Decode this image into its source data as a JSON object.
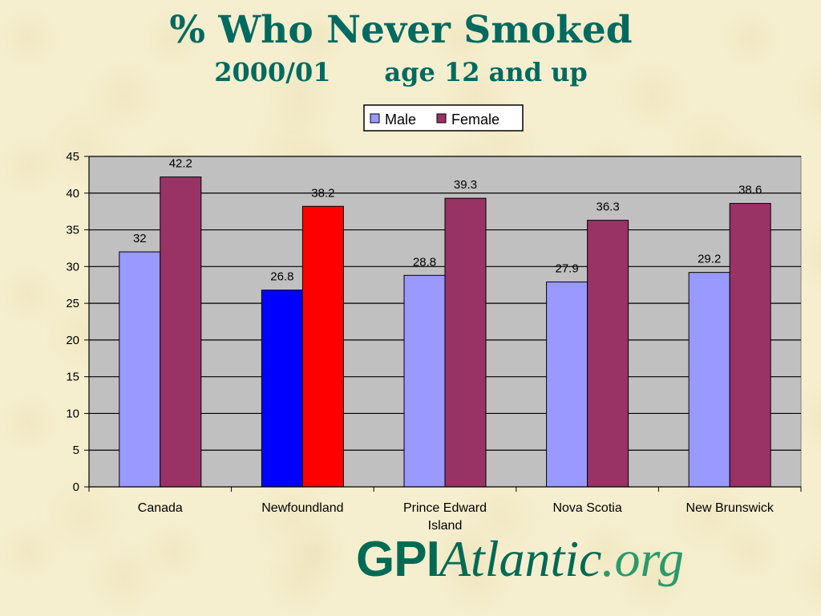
{
  "slide": {
    "title": "% Who Never Smoked",
    "subtitle": "2000/01      age 12 and up"
  },
  "logo": {
    "part1": "GPI",
    "part2": "Atlantic",
    "part3": ".org"
  },
  "colors": {
    "male": "#9999ff",
    "female": "#993366",
    "male_highlight": "#0000ff",
    "female_highlight": "#ff0000",
    "plot_background": "#c0c0c0",
    "title": "#006a60"
  },
  "chart_data": {
    "type": "bar",
    "categories": [
      "Canada",
      "Newfoundland",
      "Prince Edward Island",
      "Nova Scotia",
      "New Brunswick"
    ],
    "category_label_lines": [
      [
        "Canada"
      ],
      [
        "Newfoundland"
      ],
      [
        "Prince Edward",
        "Island"
      ],
      [
        "Nova Scotia"
      ],
      [
        "New Brunswick"
      ]
    ],
    "series": [
      {
        "name": "Male",
        "values": [
          32,
          26.8,
          28.8,
          27.9,
          29.2
        ]
      },
      {
        "name": "Female",
        "values": [
          42.2,
          38.2,
          39.3,
          36.3,
          38.6
        ]
      }
    ],
    "data_labels": [
      [
        "32",
        "26.8",
        "28.8",
        "27.9",
        "29.2"
      ],
      [
        "42.2",
        "38.2",
        "39.3",
        "36.3",
        "38.6"
      ]
    ],
    "highlighted_category": "Newfoundland",
    "yticks": [
      "0",
      "5",
      "10",
      "15",
      "20",
      "25",
      "30",
      "35",
      "40",
      "45"
    ],
    "ylim": [
      0,
      45
    ],
    "grid": true,
    "legend": "top-center"
  }
}
